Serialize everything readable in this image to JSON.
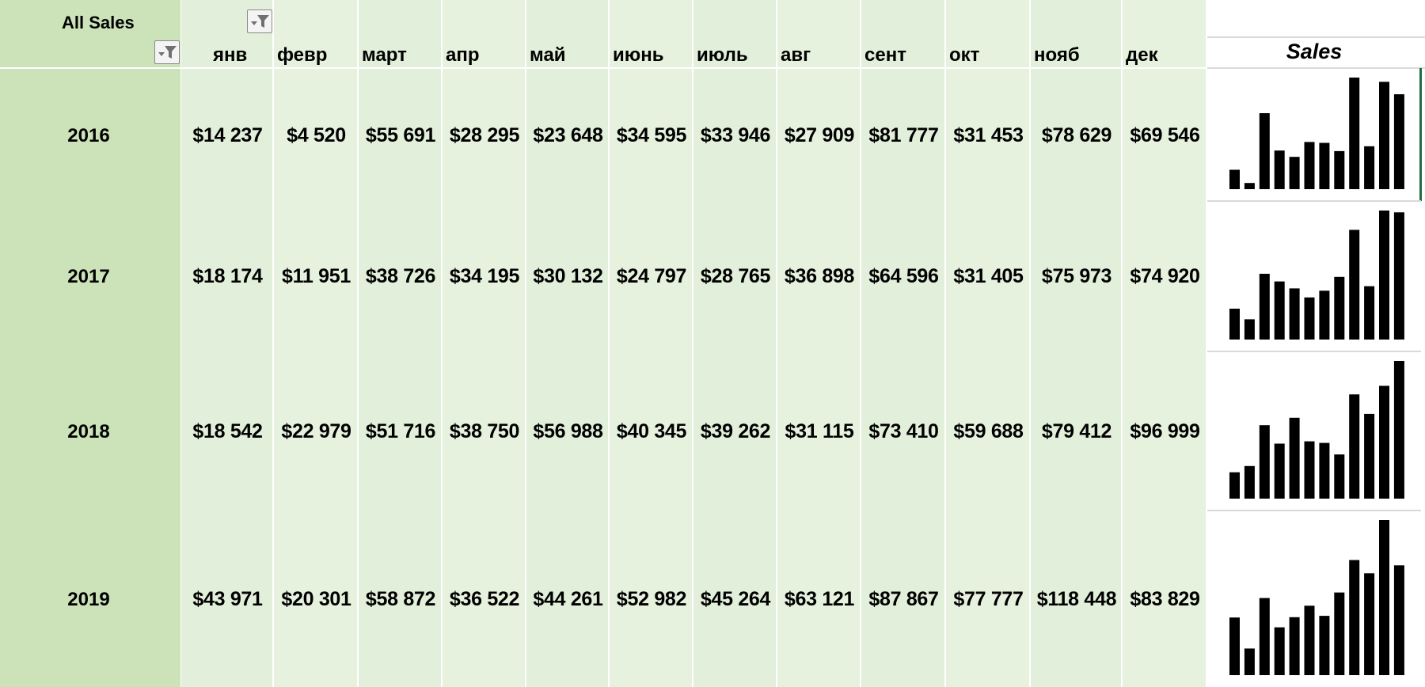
{
  "pivot": {
    "corner_title": "All Sales",
    "row_filter_icon": "filter-dropdown-icon",
    "column_filter_icon": "filter-dropdown-icon",
    "months": [
      "янв",
      "февр",
      "март",
      "апр",
      "май",
      "июнь",
      "июль",
      "авг",
      "сент",
      "окт",
      "нояб",
      "дек"
    ],
    "rows": [
      {
        "year": "2016",
        "display": [
          "$14 237",
          "$4 520",
          "$55 691",
          "$28 295",
          "$23 648",
          "$34 595",
          "$33 946",
          "$27 909",
          "$81 777",
          "$31 453",
          "$78 629",
          "$69 546"
        ]
      },
      {
        "year": "2017",
        "display": [
          "$18 174",
          "$11 951",
          "$38 726",
          "$34 195",
          "$30 132",
          "$24 797",
          "$28 765",
          "$36 898",
          "$64 596",
          "$31 405",
          "$75 973",
          "$74 920"
        ]
      },
      {
        "year": "2018",
        "display": [
          "$18 542",
          "$22 979",
          "$51 716",
          "$38 750",
          "$56 988",
          "$40 345",
          "$39 262",
          "$31 115",
          "$73 410",
          "$59 688",
          "$79 412",
          "$96 999"
        ]
      },
      {
        "year": "2019",
        "display": [
          "$43 971",
          "$20 301",
          "$58 872",
          "$36 522",
          "$44 261",
          "$52 982",
          "$45 264",
          "$63 121",
          "$87 867",
          "$77 777",
          "$118 448",
          "$83 829"
        ]
      }
    ]
  },
  "sparklines": {
    "header": "Sales",
    "bar_color": "#000000",
    "series": [
      [
        14237,
        4520,
        55691,
        28295,
        23648,
        34595,
        33946,
        27909,
        81777,
        31453,
        78629,
        69546
      ],
      [
        18174,
        11951,
        38726,
        34195,
        30132,
        24797,
        28765,
        36898,
        64596,
        31405,
        75973,
        74920
      ],
      [
        18542,
        22979,
        51716,
        38750,
        56988,
        40345,
        39262,
        31115,
        73410,
        59688,
        79412,
        96999
      ],
      [
        43971,
        20301,
        58872,
        36522,
        44261,
        52982,
        45264,
        63121,
        87867,
        77777,
        118448,
        83829
      ]
    ]
  },
  "colors": {
    "row_label_fill": "#cce2b8",
    "value_fill": "#e2efda",
    "selection_border": "#1f6e43"
  }
}
